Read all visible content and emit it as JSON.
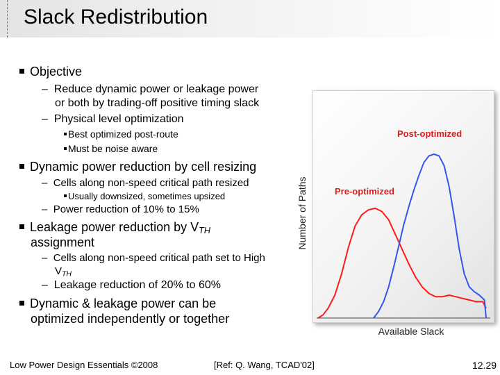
{
  "slide": {
    "title": "Slack Redistribution",
    "number": "12.29"
  },
  "bullets": {
    "objective": {
      "label": "Objective",
      "sub1_line1": "Reduce dynamic power or leakage power",
      "sub1_line2": "or both by trading-off positive timing slack",
      "sub2": "Physical level optimization",
      "sub2_items": [
        "Best optimized post-route",
        "Must be noise aware"
      ]
    },
    "dynamic": {
      "label": "Dynamic power reduction by cell resizing",
      "sub1": "Cells along non-speed critical path resized",
      "sub1_item": "Usually downsized, sometimes upsized",
      "sub2": "Power reduction of 10% to 15%"
    },
    "leakage": {
      "label_line1": "Leakage power reduction by V",
      "label_sub": "TH",
      "label_line2": "assignment",
      "sub1_line1": "Cells along non-speed critical path set to High",
      "sub1_line2": "V",
      "sub1_line2_sub": "TH",
      "sub2": "Leakage reduction of 20% to 60%"
    },
    "combined": {
      "label_line1": "Dynamic & leakage power can be",
      "label_line2": "optimized independently or together"
    }
  },
  "footer": {
    "left": "Low Power Design Essentials ©2008",
    "center": "[Ref: Q. Wang, TCAD'02]"
  },
  "chart_data": {
    "type": "line",
    "xlabel": "Available Slack",
    "ylabel": "Number of Paths",
    "xlim": [
      0,
      100
    ],
    "ylim": [
      0,
      100
    ],
    "grid": false,
    "annotations": [
      "Post-optimized",
      "Pre-optimized"
    ],
    "series": [
      {
        "name": "Pre-optimized",
        "color": "#ff1a1a",
        "x": [
          0,
          3,
          6,
          10,
          14,
          18,
          22,
          26,
          30,
          34,
          38,
          42,
          46,
          50,
          54,
          58,
          62,
          66,
          70,
          74,
          78,
          82,
          86,
          90,
          94,
          98,
          100
        ],
        "y": [
          0,
          2,
          6,
          14,
          27,
          43,
          56,
          63,
          66,
          67,
          65,
          60,
          51,
          42,
          33,
          25,
          19,
          15,
          13,
          13,
          14,
          13,
          12,
          11,
          10,
          10,
          6
        ]
      },
      {
        "name": "Post-optimized",
        "color": "#3355ee",
        "x": [
          33,
          36,
          39,
          42,
          45,
          48,
          51,
          54,
          57,
          60,
          63,
          66,
          69,
          72,
          75,
          78,
          81,
          84,
          87,
          90,
          93,
          96,
          99,
          100
        ],
        "y": [
          0,
          4,
          10,
          19,
          31,
          44,
          57,
          68,
          78,
          87,
          95,
          99,
          100,
          99,
          93,
          80,
          62,
          42,
          27,
          19,
          16,
          14,
          11,
          0
        ]
      }
    ]
  }
}
